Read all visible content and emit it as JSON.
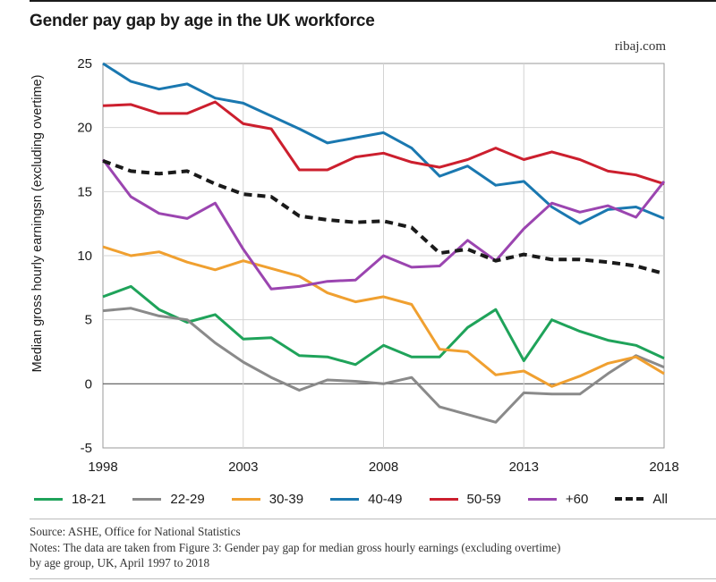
{
  "header": {
    "title": "Gender pay gap by age in the UK workforce",
    "source_tag": "ribaj.com"
  },
  "footer": {
    "source": "Source: ASHE, Office for National Statistics",
    "notes_line1": "Notes: The data are taken from Figure 3: Gender pay gap for median gross hourly earnings (excluding overtime)",
    "notes_line2": "by age group, UK, April 1997 to 2018"
  },
  "chart_data": {
    "type": "line",
    "title": "Gender pay gap by age in the UK workforce",
    "xlabel": "",
    "ylabel": "Median gross hourly earningsn (excluding overtime)",
    "xlim": [
      1998,
      2018
    ],
    "ylim": [
      -5,
      25
    ],
    "x_ticks": [
      "1998",
      "2003",
      "2008",
      "2013",
      "2018"
    ],
    "y_ticks": [
      "25",
      "20",
      "15",
      "10",
      "5",
      "0",
      "-5"
    ],
    "grid": true,
    "legend_position": "bottom",
    "x": [
      1998,
      1999,
      2000,
      2001,
      2002,
      2003,
      2004,
      2005,
      2006,
      2007,
      2008,
      2009,
      2010,
      2011,
      2012,
      2013,
      2014,
      2015,
      2016,
      2017,
      2018
    ],
    "series": [
      {
        "name": "18-21",
        "color": "#1fa35a",
        "dashed": false,
        "values": [
          6.8,
          7.6,
          5.8,
          4.8,
          5.4,
          3.5,
          3.6,
          2.2,
          2.1,
          1.5,
          3.0,
          2.1,
          2.1,
          4.4,
          5.8,
          1.8,
          5.0,
          4.1,
          3.4,
          3.0,
          2.0
        ]
      },
      {
        "name": "22-29",
        "color": "#8a8a8a",
        "dashed": false,
        "values": [
          5.7,
          5.9,
          5.3,
          5.0,
          3.2,
          1.7,
          0.5,
          -0.5,
          0.3,
          0.2,
          0.0,
          0.5,
          -1.8,
          -2.4,
          -3.0,
          -0.7,
          -0.8,
          -0.8,
          0.8,
          2.2,
          1.3
        ]
      },
      {
        "name": "30-39",
        "color": "#f0a030",
        "dashed": false,
        "values": [
          10.7,
          10.0,
          10.3,
          9.5,
          8.9,
          9.6,
          9.0,
          8.4,
          7.1,
          6.4,
          6.8,
          6.2,
          2.7,
          2.5,
          0.7,
          1.0,
          -0.2,
          0.6,
          1.6,
          2.1,
          0.8
        ]
      },
      {
        "name": "40-49",
        "color": "#1a78b0",
        "dashed": false,
        "values": [
          25.0,
          23.6,
          23.0,
          23.4,
          22.3,
          21.9,
          20.9,
          19.9,
          18.8,
          19.2,
          19.6,
          18.4,
          16.2,
          17.0,
          15.5,
          15.8,
          13.8,
          12.5,
          13.6,
          13.8,
          12.9
        ]
      },
      {
        "name": "50-59",
        "color": "#cc1f2e",
        "dashed": false,
        "values": [
          21.7,
          21.8,
          21.1,
          21.1,
          22.0,
          20.3,
          19.9,
          16.7,
          16.7,
          17.7,
          18.0,
          17.3,
          16.9,
          17.5,
          18.4,
          17.5,
          18.1,
          17.5,
          16.6,
          16.3,
          15.6
        ]
      },
      {
        "name": "+60",
        "color": "#9b45b0",
        "dashed": false,
        "values": [
          17.5,
          14.6,
          13.3,
          12.9,
          14.1,
          10.5,
          7.4,
          7.6,
          8.0,
          8.1,
          10.0,
          9.1,
          9.2,
          11.2,
          9.6,
          12.1,
          14.1,
          13.4,
          13.9,
          13.0,
          15.8
        ]
      },
      {
        "name": "All",
        "color": "#1a1a1a",
        "dashed": true,
        "values": [
          17.4,
          16.6,
          16.4,
          16.6,
          15.6,
          14.8,
          14.6,
          13.1,
          12.8,
          12.6,
          12.7,
          12.2,
          10.2,
          10.5,
          9.6,
          10.1,
          9.7,
          9.7,
          9.5,
          9.2,
          8.6
        ]
      }
    ]
  }
}
